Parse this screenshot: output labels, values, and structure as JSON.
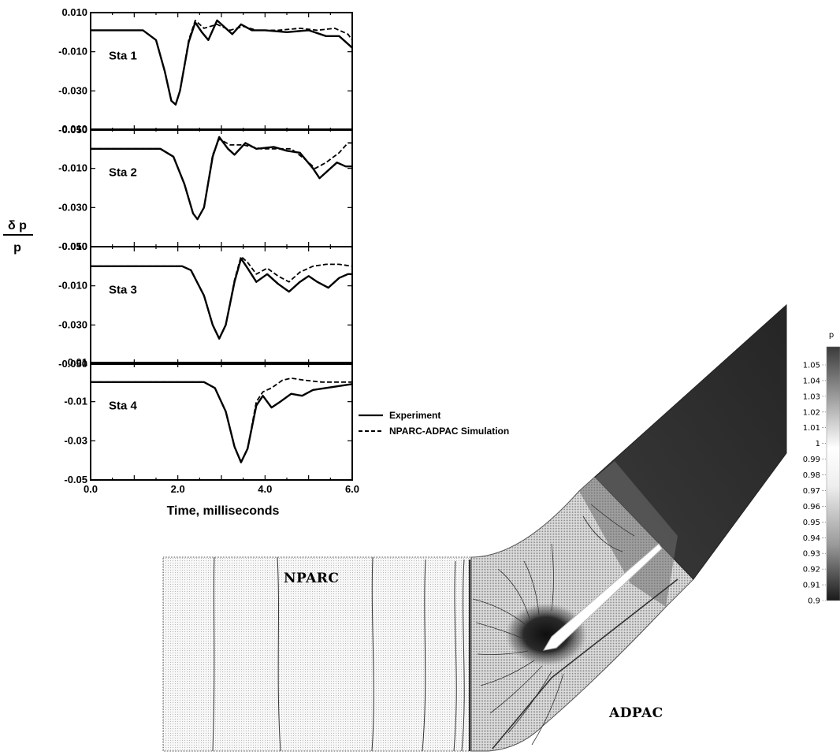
{
  "chart_data": [
    {
      "type": "line",
      "x_label": "Time, milliseconds",
      "x_ticks": [
        "0.0",
        "2.0",
        "4.0",
        "6.0"
      ],
      "xlim": [
        0,
        6
      ],
      "y_label_numerator": "δ p",
      "y_label_denominator": "p",
      "legend": {
        "placement": "right of Sta 4 panel",
        "entries": [
          {
            "label": "Experiment",
            "style": "solid"
          },
          {
            "label": "NPARC-ADPAC Simulation",
            "style": "dashed"
          }
        ]
      },
      "panels": [
        {
          "label": "Sta 1",
          "ylim": [
            -0.05,
            0.01
          ],
          "y_ticks": [
            {
              "v": 0.01,
              "t": "0.010"
            },
            {
              "v": -0.01,
              "t": "-0.010"
            },
            {
              "v": -0.03,
              "t": "-0.030"
            },
            {
              "v": -0.05,
              "t": "-0.050"
            }
          ],
          "series": [
            {
              "style": "solid",
              "points": [
                [
                  0,
                  0.001
                ],
                [
                  1.2,
                  0.001
                ],
                [
                  1.5,
                  -0.004
                ],
                [
                  1.7,
                  -0.02
                ],
                [
                  1.85,
                  -0.035
                ],
                [
                  1.95,
                  -0.037
                ],
                [
                  2.05,
                  -0.03
                ],
                [
                  2.25,
                  -0.005
                ],
                [
                  2.4,
                  0.005
                ],
                [
                  2.55,
                  0.0
                ],
                [
                  2.7,
                  -0.004
                ],
                [
                  2.9,
                  0.006
                ],
                [
                  3.05,
                  0.003
                ],
                [
                  3.25,
                  -0.001
                ],
                [
                  3.45,
                  0.004
                ],
                [
                  3.7,
                  0.001
                ],
                [
                  4.0,
                  0.001
                ],
                [
                  4.5,
                  0.0
                ],
                [
                  5.0,
                  0.001
                ],
                [
                  5.4,
                  -0.002
                ],
                [
                  5.7,
                  -0.002
                ],
                [
                  5.9,
                  -0.006
                ],
                [
                  6.0,
                  -0.008
                ]
              ]
            },
            {
              "style": "dashed",
              "points": [
                [
                  0,
                  0.001
                ],
                [
                  1.2,
                  0.001
                ],
                [
                  1.5,
                  -0.004
                ],
                [
                  1.7,
                  -0.02
                ],
                [
                  1.85,
                  -0.035
                ],
                [
                  1.95,
                  -0.037
                ],
                [
                  2.05,
                  -0.03
                ],
                [
                  2.25,
                  -0.004
                ],
                [
                  2.4,
                  0.006
                ],
                [
                  2.6,
                  0.002
                ],
                [
                  2.9,
                  0.004
                ],
                [
                  3.2,
                  0.001
                ],
                [
                  3.5,
                  0.003
                ],
                [
                  3.8,
                  0.001
                ],
                [
                  4.3,
                  0.001
                ],
                [
                  4.8,
                  0.002
                ],
                [
                  5.2,
                  0.001
                ],
                [
                  5.6,
                  0.002
                ],
                [
                  5.9,
                  -0.001
                ],
                [
                  6.0,
                  -0.004
                ]
              ]
            }
          ]
        },
        {
          "label": "Sta 2",
          "ylim": [
            -0.05,
            0.01
          ],
          "y_ticks": [
            {
              "v": 0.01,
              "t": "0.010"
            },
            {
              "v": -0.01,
              "t": "-0.010"
            },
            {
              "v": -0.03,
              "t": "-0.030"
            },
            {
              "v": -0.05,
              "t": "-0.050"
            }
          ],
          "series": [
            {
              "style": "solid",
              "points": [
                [
                  0,
                  0.0
                ],
                [
                  1.6,
                  0.0
                ],
                [
                  1.9,
                  -0.004
                ],
                [
                  2.15,
                  -0.018
                ],
                [
                  2.35,
                  -0.033
                ],
                [
                  2.45,
                  -0.036
                ],
                [
                  2.6,
                  -0.03
                ],
                [
                  2.8,
                  -0.004
                ],
                [
                  2.95,
                  0.006
                ],
                [
                  3.15,
                  0.0
                ],
                [
                  3.3,
                  -0.003
                ],
                [
                  3.55,
                  0.003
                ],
                [
                  3.8,
                  0.0
                ],
                [
                  4.2,
                  0.001
                ],
                [
                  4.5,
                  -0.001
                ],
                [
                  4.8,
                  -0.002
                ],
                [
                  5.1,
                  -0.01
                ],
                [
                  5.25,
                  -0.015
                ],
                [
                  5.45,
                  -0.011
                ],
                [
                  5.65,
                  -0.007
                ],
                [
                  5.85,
                  -0.009
                ],
                [
                  6.0,
                  -0.009
                ]
              ]
            },
            {
              "style": "dashed",
              "points": [
                [
                  0,
                  0.0
                ],
                [
                  1.6,
                  0.0
                ],
                [
                  1.9,
                  -0.004
                ],
                [
                  2.15,
                  -0.018
                ],
                [
                  2.35,
                  -0.033
                ],
                [
                  2.45,
                  -0.036
                ],
                [
                  2.6,
                  -0.03
                ],
                [
                  2.8,
                  -0.003
                ],
                [
                  2.95,
                  0.005
                ],
                [
                  3.2,
                  0.002
                ],
                [
                  3.5,
                  0.002
                ],
                [
                  3.9,
                  0.0
                ],
                [
                  4.3,
                  0.0
                ],
                [
                  4.6,
                  0.0
                ],
                [
                  4.9,
                  -0.005
                ],
                [
                  5.15,
                  -0.01
                ],
                [
                  5.4,
                  -0.007
                ],
                [
                  5.7,
                  -0.002
                ],
                [
                  5.9,
                  0.003
                ],
                [
                  6.0,
                  0.003
                ]
              ]
            }
          ]
        },
        {
          "label": "Sta 3",
          "ylim": [
            -0.05,
            0.01
          ],
          "y_ticks": [
            {
              "v": 0.01,
              "t": "0.010"
            },
            {
              "v": -0.01,
              "t": "-0.010"
            },
            {
              "v": -0.03,
              "t": "-0.030"
            },
            {
              "v": -0.05,
              "t": "-0.050"
            }
          ],
          "series": [
            {
              "style": "solid",
              "points": [
                [
                  0,
                  0.0
                ],
                [
                  2.1,
                  0.0
                ],
                [
                  2.3,
                  -0.002
                ],
                [
                  2.6,
                  -0.015
                ],
                [
                  2.8,
                  -0.03
                ],
                [
                  2.95,
                  -0.037
                ],
                [
                  3.1,
                  -0.03
                ],
                [
                  3.3,
                  -0.008
                ],
                [
                  3.45,
                  0.004
                ],
                [
                  3.6,
                  -0.001
                ],
                [
                  3.8,
                  -0.008
                ],
                [
                  4.05,
                  -0.004
                ],
                [
                  4.3,
                  -0.009
                ],
                [
                  4.55,
                  -0.013
                ],
                [
                  4.8,
                  -0.008
                ],
                [
                  5.0,
                  -0.005
                ],
                [
                  5.2,
                  -0.008
                ],
                [
                  5.45,
                  -0.011
                ],
                [
                  5.7,
                  -0.006
                ],
                [
                  5.9,
                  -0.004
                ],
                [
                  6.0,
                  -0.004
                ]
              ]
            },
            {
              "style": "dashed",
              "points": [
                [
                  0,
                  0.0
                ],
                [
                  2.1,
                  0.0
                ],
                [
                  2.3,
                  -0.002
                ],
                [
                  2.6,
                  -0.015
                ],
                [
                  2.8,
                  -0.03
                ],
                [
                  2.95,
                  -0.037
                ],
                [
                  3.1,
                  -0.03
                ],
                [
                  3.3,
                  -0.007
                ],
                [
                  3.45,
                  0.005
                ],
                [
                  3.6,
                  0.002
                ],
                [
                  3.8,
                  -0.004
                ],
                [
                  4.05,
                  -0.001
                ],
                [
                  4.3,
                  -0.005
                ],
                [
                  4.55,
                  -0.008
                ],
                [
                  4.8,
                  -0.003
                ],
                [
                  5.1,
                  0.0
                ],
                [
                  5.4,
                  0.001
                ],
                [
                  5.7,
                  0.001
                ],
                [
                  6.0,
                  0.0
                ]
              ]
            }
          ]
        },
        {
          "label": "Sta 4",
          "ylim": [
            -0.05,
            0.01
          ],
          "y_ticks": [
            {
              "v": 0.01,
              "t": "0.01"
            },
            {
              "v": -0.01,
              "t": "-0.01"
            },
            {
              "v": -0.03,
              "t": "-0.03"
            },
            {
              "v": -0.05,
              "t": "-0.05"
            }
          ],
          "series": [
            {
              "style": "solid",
              "points": [
                [
                  0,
                  0.0
                ],
                [
                  2.6,
                  0.0
                ],
                [
                  2.85,
                  -0.003
                ],
                [
                  3.1,
                  -0.015
                ],
                [
                  3.3,
                  -0.033
                ],
                [
                  3.45,
                  -0.041
                ],
                [
                  3.6,
                  -0.034
                ],
                [
                  3.8,
                  -0.012
                ],
                [
                  3.95,
                  -0.007
                ],
                [
                  4.15,
                  -0.013
                ],
                [
                  4.35,
                  -0.01
                ],
                [
                  4.6,
                  -0.006
                ],
                [
                  4.85,
                  -0.007
                ],
                [
                  5.1,
                  -0.004
                ],
                [
                  5.4,
                  -0.003
                ],
                [
                  5.7,
                  -0.002
                ],
                [
                  6.0,
                  -0.001
                ]
              ]
            },
            {
              "style": "dashed",
              "points": [
                [
                  0,
                  0.0
                ],
                [
                  2.6,
                  0.0
                ],
                [
                  2.85,
                  -0.003
                ],
                [
                  3.1,
                  -0.015
                ],
                [
                  3.3,
                  -0.033
                ],
                [
                  3.45,
                  -0.041
                ],
                [
                  3.6,
                  -0.034
                ],
                [
                  3.8,
                  -0.01
                ],
                [
                  3.95,
                  -0.005
                ],
                [
                  4.15,
                  -0.003
                ],
                [
                  4.4,
                  0.001
                ],
                [
                  4.6,
                  0.002
                ],
                [
                  4.9,
                  0.001
                ],
                [
                  5.3,
                  0.0
                ],
                [
                  5.7,
                  0.0
                ],
                [
                  6.0,
                  0.0
                ]
              ]
            }
          ]
        }
      ]
    },
    {
      "type": "heatmap",
      "regions": [
        "NPARC",
        "ADPAC"
      ],
      "colorbar_title": "p",
      "colorbar_range": [
        0.9,
        1.05
      ],
      "colorbar_ticks": [
        "1.05",
        "1.04",
        "1.03",
        "1.02",
        "1.01",
        "1",
        "0.99",
        "0.98",
        "0.97",
        "0.96",
        "0.95",
        "0.94",
        "0.93",
        "0.92",
        "0.91",
        "0.9"
      ]
    }
  ]
}
